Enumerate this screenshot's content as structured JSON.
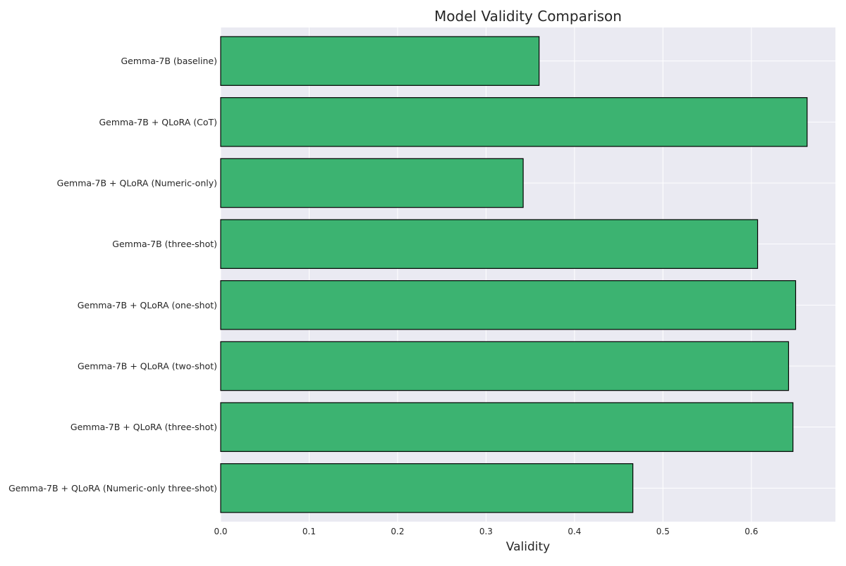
{
  "chart_data": {
    "type": "bar",
    "orientation": "horizontal",
    "title": "Model Validity Comparison",
    "xlabel": "Validity",
    "ylabel": "",
    "xlim": [
      0,
      0.695
    ],
    "xticks": [
      0.0,
      0.1,
      0.2,
      0.3,
      0.4,
      0.5,
      0.6
    ],
    "xtick_labels": [
      "0.0",
      "0.1",
      "0.2",
      "0.3",
      "0.4",
      "0.5",
      "0.6"
    ],
    "categories": [
      "Gemma-7B (baseline)",
      "Gemma-7B + QLoRA (CoT)",
      "Gemma-7B + QLoRA (Numeric-only)",
      "Gemma-7B (three-shot)",
      "Gemma-7B + QLoRA (one-shot)",
      "Gemma-7B + QLoRA (two-shot)",
      "Gemma-7B + QLoRA (three-shot)",
      "Gemma-7B + QLoRA (Numeric-only three-shot)"
    ],
    "values": [
      0.36,
      0.663,
      0.342,
      0.607,
      0.65,
      0.642,
      0.647,
      0.466
    ],
    "grid": true,
    "legend": "none",
    "colors": {
      "bar_fill": "#3cb371",
      "bar_edge": "#000000",
      "plot_background": "#eaeaf2",
      "grid": "#ffffff",
      "text": "#262626"
    }
  }
}
